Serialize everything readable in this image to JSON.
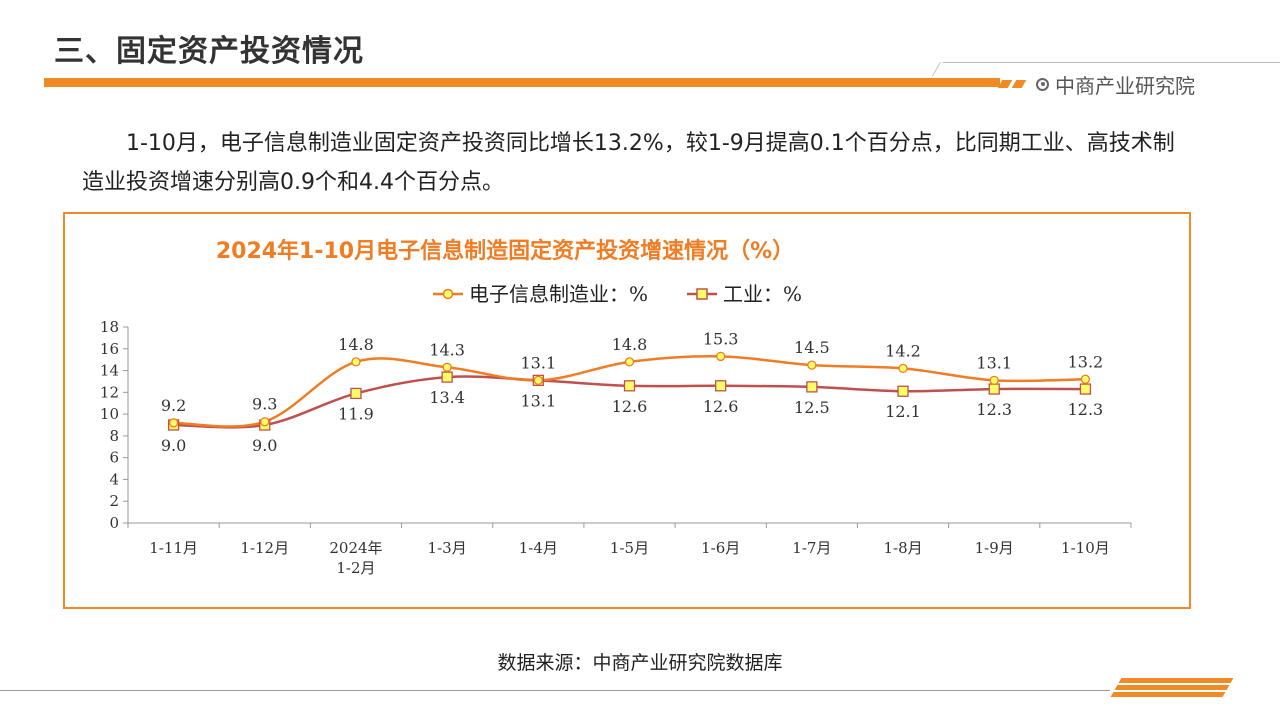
{
  "header": {
    "title": "三、固定资产投资情况",
    "brand": "中商产业研究院"
  },
  "body": {
    "paragraph": "1-10月，电子信息制造业固定资产投资同比增长13.2%，较1-9月提高0.1个百分点，比同期工业、高技术制造业投资增速分别高0.9个和4.4个百分点。"
  },
  "colors": {
    "accent": "#f08a24",
    "series_electronics": "#f07c23",
    "series_industry": "#c0504d",
    "marker_fill": "#ffff66",
    "title_color": "#f07c23"
  },
  "chart_data": {
    "type": "line",
    "title": "2024年1-10月电子信息制造固定资产投资增速情况（%）",
    "categories": [
      "1-11月",
      "1-12月",
      "2024年\n1-2月",
      "1-3月",
      "1-4月",
      "1-5月",
      "1-6月",
      "1-7月",
      "1-8月",
      "1-9月",
      "1-10月"
    ],
    "series": [
      {
        "name": "电子信息制造业：%",
        "marker": "circle",
        "values": [
          9.2,
          9.3,
          14.8,
          14.3,
          13.1,
          14.8,
          15.3,
          14.5,
          14.2,
          13.1,
          13.2
        ]
      },
      {
        "name": "工业：%",
        "marker": "square",
        "values": [
          9.0,
          9.0,
          11.9,
          13.4,
          13.1,
          12.6,
          12.6,
          12.5,
          12.1,
          12.3,
          12.3
        ]
      }
    ],
    "ylim": [
      0,
      18
    ],
    "yticks": [
      0,
      2,
      4,
      6,
      8,
      10,
      12,
      14,
      16,
      18
    ],
    "legend_position": "top-center",
    "grid": false
  },
  "footer": {
    "source": "数据来源：中商产业研究院数据库"
  }
}
